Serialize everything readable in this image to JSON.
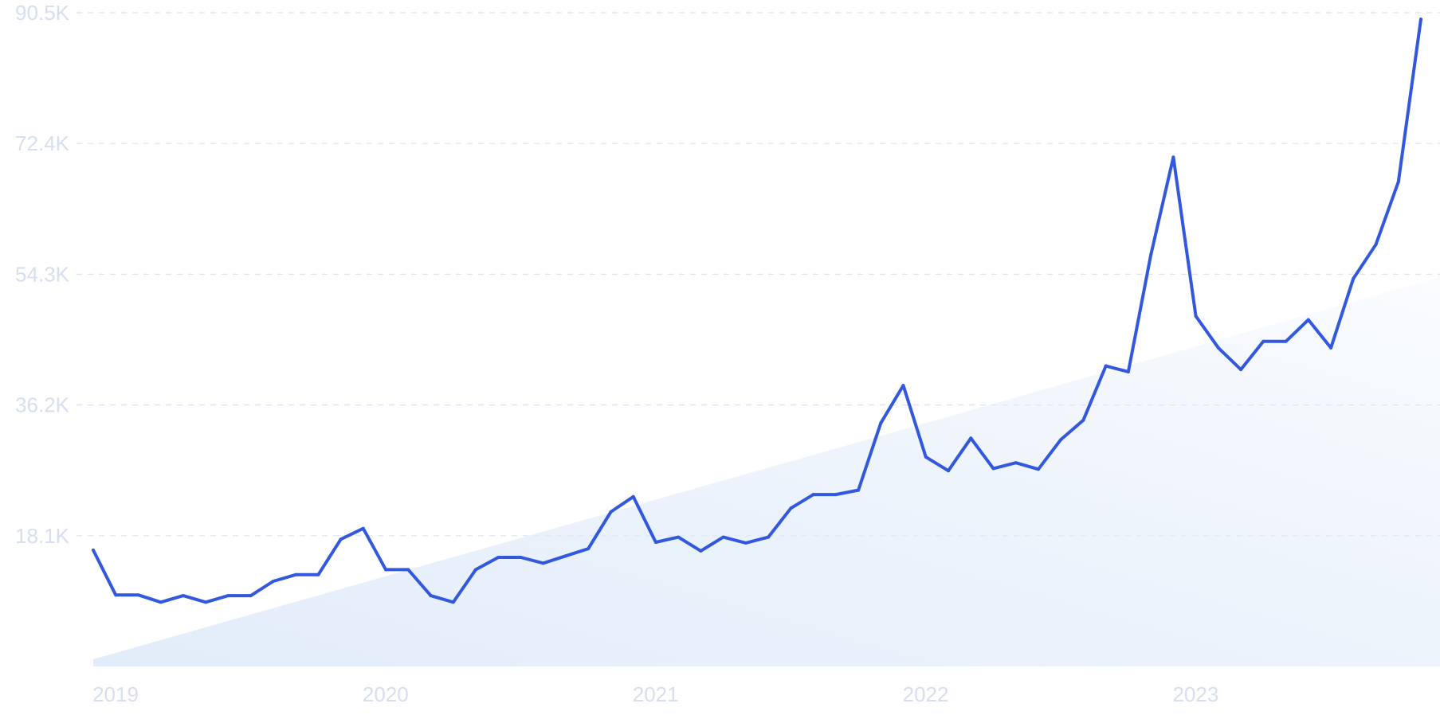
{
  "colors": {
    "line": "#3158dd",
    "grid": "#dde3ee",
    "tick_text": "#d7def0",
    "trend_fill": "#dde9f9"
  },
  "chart_data": {
    "type": "line",
    "title": "",
    "xlabel": "",
    "ylabel": "",
    "grid": true,
    "ylim": [
      0,
      90500
    ],
    "yticks": [
      18100,
      36200,
      54300,
      72400,
      90500
    ],
    "ytick_labels": [
      "18.1K",
      "36.2K",
      "54.3K",
      "72.4K",
      "90.5K"
    ],
    "xlim": [
      "2019-01",
      "2023-12"
    ],
    "xticks": [
      "2019-01",
      "2020-01",
      "2021-01",
      "2022-01",
      "2023-01"
    ],
    "xtick_labels": [
      "2019",
      "2020",
      "2021",
      "2022",
      "2023"
    ],
    "trend": {
      "type": "linear",
      "x": [
        "2019-01",
        "2023-12"
      ],
      "values": [
        1000,
        53900
      ]
    },
    "series": [
      {
        "x": [
          "2019-01",
          "2019-02",
          "2019-03",
          "2019-04",
          "2019-05",
          "2019-06",
          "2019-07",
          "2019-08",
          "2019-09",
          "2019-10",
          "2019-11",
          "2019-12",
          "2020-01",
          "2020-02",
          "2020-03",
          "2020-04",
          "2020-05",
          "2020-06",
          "2020-07",
          "2020-08",
          "2020-09",
          "2020-10",
          "2020-11",
          "2020-12",
          "2021-01",
          "2021-02",
          "2021-03",
          "2021-04",
          "2021-05",
          "2021-06",
          "2021-07",
          "2021-08",
          "2021-09",
          "2021-10",
          "2021-11",
          "2021-12",
          "2022-01",
          "2022-02",
          "2022-03",
          "2022-04",
          "2022-05",
          "2022-06",
          "2022-07",
          "2022-08",
          "2022-09",
          "2022-10",
          "2022-11",
          "2022-12",
          "2023-01",
          "2023-02",
          "2023-03",
          "2023-04",
          "2023-05",
          "2023-06",
          "2023-07",
          "2023-08",
          "2023-09",
          "2023-10",
          "2023-11",
          "2023-12"
        ],
        "values": [
          16100,
          9900,
          9900,
          8900,
          9800,
          8900,
          9800,
          9800,
          11800,
          12700,
          12700,
          17600,
          19100,
          13400,
          13400,
          9800,
          8900,
          13400,
          15100,
          15100,
          14300,
          15300,
          16300,
          21400,
          23500,
          17200,
          17900,
          16000,
          17900,
          17100,
          17900,
          21900,
          23800,
          23800,
          24400,
          33700,
          38900,
          29000,
          27100,
          31600,
          27400,
          28200,
          27300,
          31400,
          34100,
          41600,
          40800,
          57000,
          70500,
          48500,
          44100,
          41100,
          45000,
          45000,
          48000,
          44100,
          53700,
          58400,
          67100,
          89600
        ]
      }
    ]
  }
}
